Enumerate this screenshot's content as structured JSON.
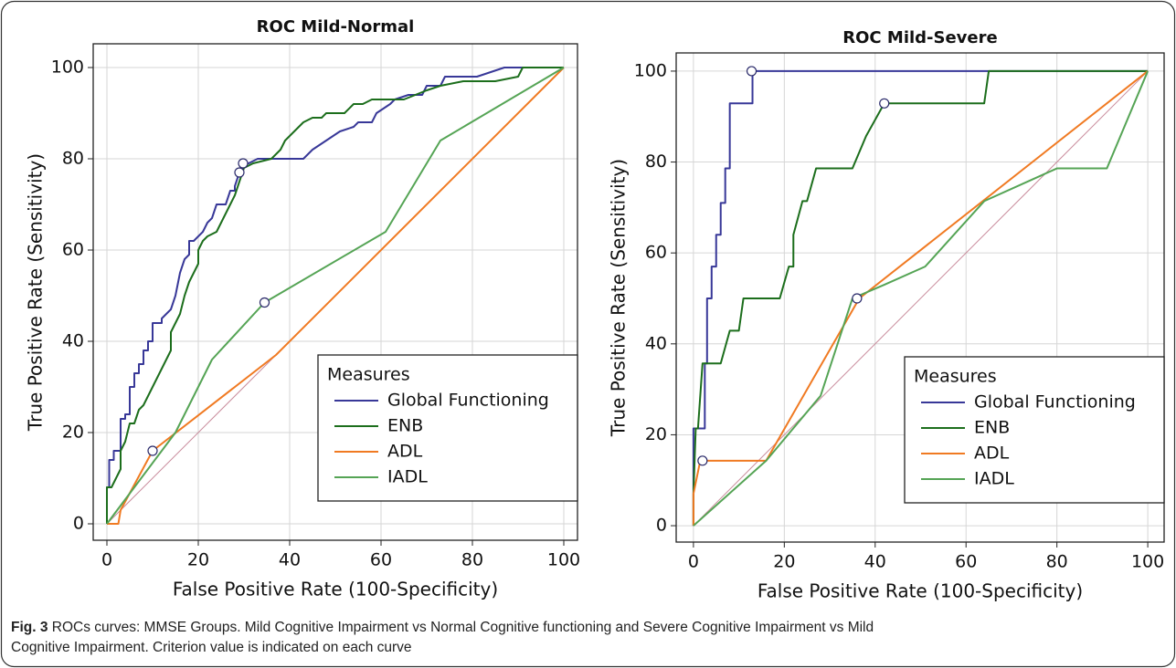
{
  "chart_data": [
    {
      "type": "line",
      "title": "ROC Mild-Normal",
      "x_label": "False Positive Rate (100-Specificity)",
      "y_label": "True Positive Rate (Sensitivity)",
      "xlim": [
        -3,
        103
      ],
      "ylim": [
        -3.6,
        105.2
      ],
      "xticks": [
        0,
        20,
        40,
        60,
        80,
        100
      ],
      "yticks": [
        0,
        20,
        40,
        60,
        80,
        100
      ],
      "grid": true,
      "legend_title": "Measures",
      "legend_position": "lower right",
      "reference_line": {
        "x": [
          0,
          100
        ],
        "values": [
          0,
          100
        ],
        "color": "#c98c9c"
      },
      "series": [
        {
          "name": "Global Functioning",
          "color": "#383898",
          "x": [
            0,
            0,
            0.5,
            0.5,
            1.5,
            1.5,
            3,
            3,
            4,
            4,
            5,
            5,
            6,
            6,
            7,
            7,
            8,
            8,
            9,
            9,
            10,
            10,
            12,
            12,
            14,
            15,
            16,
            17,
            18,
            18,
            19,
            20,
            21,
            22,
            23,
            24,
            26,
            27,
            28,
            28,
            29,
            29.8,
            31,
            33,
            36,
            43,
            45,
            48,
            51,
            54,
            55,
            58,
            59,
            62,
            63,
            66,
            69,
            70,
            73,
            74,
            81,
            84,
            87,
            100
          ],
          "values": [
            0,
            8,
            8,
            14,
            14,
            16,
            16,
            23,
            23,
            24,
            24,
            30,
            30,
            33,
            33,
            35,
            35,
            38,
            38,
            40,
            40,
            44,
            44,
            45,
            47,
            50,
            55,
            58,
            59,
            62,
            62,
            63,
            64,
            66,
            67,
            70,
            70,
            73,
            73,
            74,
            77,
            79,
            79,
            80,
            80,
            80,
            82,
            84,
            86,
            87,
            88,
            88,
            90,
            92,
            93,
            94,
            94,
            96,
            96,
            98,
            98,
            99,
            100,
            100
          ],
          "criterion": {
            "x": 29.8,
            "y": 79
          }
        },
        {
          "name": "ENB",
          "color": "#1c6e1c",
          "x": [
            0,
            0,
            1,
            2,
            3,
            3,
            4,
            5,
            6,
            7,
            8,
            10,
            11,
            12,
            13,
            14,
            14,
            15,
            16,
            17,
            18,
            19,
            20,
            20,
            21,
            22,
            24,
            25,
            27,
            28,
            29,
            30,
            32,
            36,
            37,
            38,
            39,
            41,
            43,
            45,
            47,
            48,
            52,
            54,
            56,
            58,
            65,
            70,
            73,
            78,
            85,
            90,
            91,
            100
          ],
          "values": [
            0,
            8,
            8,
            10,
            12,
            16,
            18,
            22,
            22,
            25,
            26,
            30,
            32,
            34,
            36,
            38,
            42,
            44,
            46,
            50,
            53,
            55,
            57,
            60,
            62,
            63,
            64,
            66,
            70,
            72,
            75,
            78,
            79,
            80,
            81,
            82,
            84,
            86,
            88,
            89,
            89,
            90,
            90,
            92,
            92,
            93,
            93,
            95,
            96,
            97,
            97,
            98,
            100,
            100
          ],
          "criterion": {
            "x": 29,
            "y": 77
          }
        },
        {
          "name": "ADL",
          "color": "#f07a22",
          "x": [
            0,
            2.5,
            3,
            10,
            37,
            100
          ],
          "values": [
            0,
            0,
            3,
            16,
            37,
            100
          ],
          "criterion": {
            "x": 10,
            "y": 16
          }
        },
        {
          "name": "IADL",
          "color": "#55a455",
          "x": [
            0,
            15,
            23,
            34.5,
            61,
            73,
            100
          ],
          "values": [
            0,
            20,
            36,
            48.5,
            64,
            84,
            100
          ],
          "criterion": {
            "x": 34.5,
            "y": 48.5
          }
        }
      ]
    },
    {
      "type": "line",
      "title": "ROC Mild-Severe",
      "x_label": "False Positive Rate (100-Specificity)",
      "y_label": "True Positive Rate (Sensitivity)",
      "xlim": [
        -3.8,
        103.6
      ],
      "ylim": [
        -3.6,
        104
      ],
      "xticks": [
        0,
        20,
        40,
        60,
        80,
        100
      ],
      "yticks": [
        0,
        20,
        40,
        60,
        80,
        100
      ],
      "grid": true,
      "legend_title": "Measures",
      "legend_position": "lower right",
      "reference_line": {
        "x": [
          0,
          100
        ],
        "values": [
          0,
          100
        ],
        "color": "#c98c9c"
      },
      "series": [
        {
          "name": "Global Functioning",
          "color": "#383898",
          "x": [
            0,
            0,
            2.5,
            2.5,
            3,
            3,
            4,
            4,
            5,
            5,
            6,
            6,
            7,
            7,
            8,
            8,
            13,
            13,
            100
          ],
          "values": [
            0,
            21.4,
            21.4,
            35.7,
            35.7,
            50,
            50,
            57,
            57,
            64,
            64,
            71,
            71,
            78.6,
            78.6,
            92.9,
            92.9,
            100,
            100
          ],
          "criterion": {
            "x": 12.8,
            "y": 100
          }
        },
        {
          "name": "ENB",
          "color": "#1c6e1c",
          "x": [
            0,
            0,
            0.5,
            1,
            2,
            6,
            8,
            10,
            11,
            19,
            21,
            22,
            22,
            24,
            25,
            27,
            28,
            35,
            38,
            42,
            64,
            65,
            100
          ],
          "values": [
            0,
            7,
            21.4,
            21.4,
            35.7,
            35.7,
            42.9,
            42.9,
            50,
            50,
            57,
            57,
            64,
            71.4,
            71.4,
            78.6,
            78.6,
            78.6,
            85.7,
            92.9,
            92.9,
            100,
            100
          ],
          "criterion": {
            "x": 42,
            "y": 92.9
          }
        },
        {
          "name": "ADL",
          "color": "#f07a22",
          "x": [
            0,
            0,
            1.5,
            16,
            36.5,
            100
          ],
          "values": [
            0,
            7,
            14.3,
            14.3,
            50,
            100
          ],
          "criterion": {
            "x": 2,
            "y": 14.3
          }
        },
        {
          "name": "IADL",
          "color": "#55a455",
          "x": [
            0,
            16,
            28,
            35,
            42,
            51,
            64,
            80,
            91,
            100
          ],
          "values": [
            0,
            14.3,
            28.6,
            50,
            53,
            57,
            71.4,
            78.6,
            78.6,
            100
          ],
          "criterion": {
            "x": 36,
            "y": 50
          }
        }
      ]
    }
  ],
  "caption": {
    "label": "Fig. 3",
    "lines": [
      "ROCs curves: MMSE Groups. Mild Cognitive Impairment vs Normal Cognitive functioning and Severe Cognitive Impairment vs Mild",
      "Cognitive Impairment. Criterion value is indicated on each curve"
    ]
  }
}
